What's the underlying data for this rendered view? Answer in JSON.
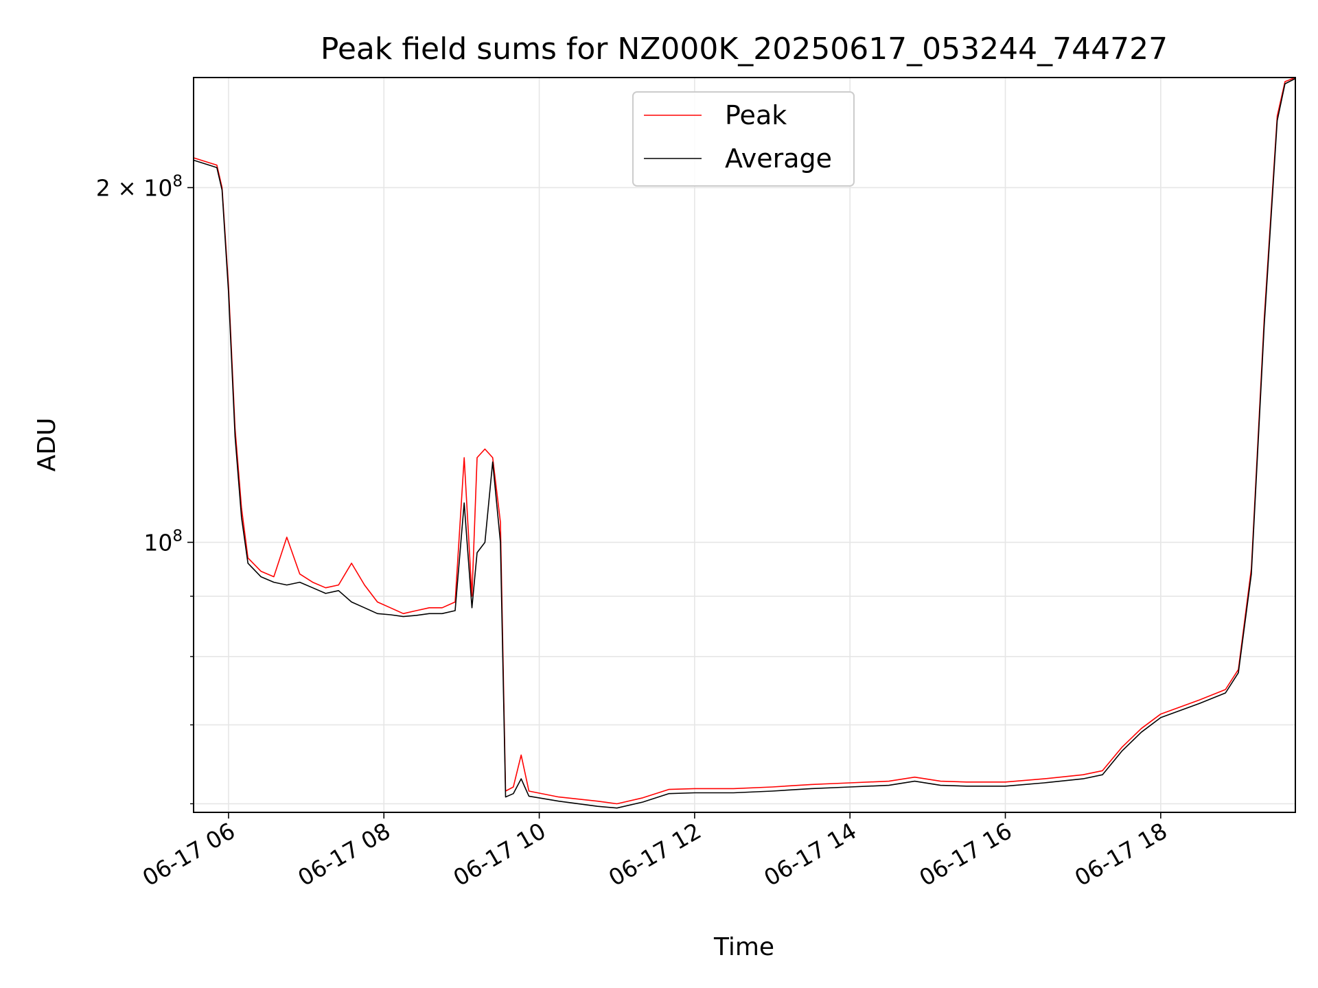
{
  "chart_data": {
    "type": "line",
    "title": "Peak field sums for NZ000K_20250617_053244_744727",
    "xlabel": "Time",
    "ylabel": "ADU",
    "yscale": "log",
    "x_axis_kind": "datetime",
    "xlim": [
      "2025-06-17 05:33",
      "2025-06-17 19:44"
    ],
    "ylim": [
      59000000,
      248000000
    ],
    "grid": true,
    "legend": "top-center",
    "x_tick_labels": [
      "06-17 06",
      "06-17 08",
      "06-17 10",
      "06-17 12",
      "06-17 14",
      "06-17 16",
      "06-17 18"
    ],
    "x_tick_values": [
      "2025-06-17 06:00",
      "2025-06-17 08:00",
      "2025-06-17 10:00",
      "2025-06-17 12:00",
      "2025-06-17 14:00",
      "2025-06-17 16:00",
      "2025-06-17 18:00"
    ],
    "y_major_ticks": [
      {
        "value": 100000000,
        "base": "10",
        "exp": "8",
        "coef": ""
      },
      {
        "value": 200000000,
        "base": "10",
        "exp": "8",
        "coef": "2 × "
      }
    ],
    "y_minor_ticks": [
      60000000,
      70000000,
      80000000,
      90000000
    ],
    "series": [
      {
        "name": "Peak",
        "color": "#ff0000",
        "points": [
          [
            "2025-06-17 05:33",
            212000000
          ],
          [
            "2025-06-17 05:45",
            210000000
          ],
          [
            "2025-06-17 05:51",
            209000000
          ],
          [
            "2025-06-17 05:55",
            200000000
          ],
          [
            "2025-06-17 06:00",
            165000000
          ],
          [
            "2025-06-17 06:05",
            125000000
          ],
          [
            "2025-06-17 06:10",
            107000000
          ],
          [
            "2025-06-17 06:15",
            97000000
          ],
          [
            "2025-06-17 06:25",
            94500000
          ],
          [
            "2025-06-17 06:35",
            93500000
          ],
          [
            "2025-06-17 06:45",
            101000000
          ],
          [
            "2025-06-17 06:55",
            94000000
          ],
          [
            "2025-06-17 07:05",
            92500000
          ],
          [
            "2025-06-17 07:15",
            91500000
          ],
          [
            "2025-06-17 07:25",
            92000000
          ],
          [
            "2025-06-17 07:35",
            96000000
          ],
          [
            "2025-06-17 07:45",
            92000000
          ],
          [
            "2025-06-17 07:55",
            89000000
          ],
          [
            "2025-06-17 08:05",
            88000000
          ],
          [
            "2025-06-17 08:15",
            87000000
          ],
          [
            "2025-06-17 08:25",
            87500000
          ],
          [
            "2025-06-17 08:35",
            88000000
          ],
          [
            "2025-06-17 08:45",
            88000000
          ],
          [
            "2025-06-17 08:55",
            89000000
          ],
          [
            "2025-06-17 09:02",
            118000000
          ],
          [
            "2025-06-17 09:08",
            90000000
          ],
          [
            "2025-06-17 09:12",
            118000000
          ],
          [
            "2025-06-17 09:18",
            120000000
          ],
          [
            "2025-06-17 09:24",
            118000000
          ],
          [
            "2025-06-17 09:30",
            104000000
          ],
          [
            "2025-06-17 09:34",
            61500000
          ],
          [
            "2025-06-17 09:40",
            62000000
          ],
          [
            "2025-06-17 09:46",
            66000000
          ],
          [
            "2025-06-17 09:52",
            61500000
          ],
          [
            "2025-06-17 10:15",
            60800000
          ],
          [
            "2025-06-17 10:45",
            60300000
          ],
          [
            "2025-06-17 11:00",
            60000000
          ],
          [
            "2025-06-17 11:20",
            60700000
          ],
          [
            "2025-06-17 11:40",
            61700000
          ],
          [
            "2025-06-17 12:00",
            61800000
          ],
          [
            "2025-06-17 12:30",
            61800000
          ],
          [
            "2025-06-17 13:00",
            62000000
          ],
          [
            "2025-06-17 13:30",
            62300000
          ],
          [
            "2025-06-17 14:00",
            62500000
          ],
          [
            "2025-06-17 14:30",
            62700000
          ],
          [
            "2025-06-17 14:50",
            63200000
          ],
          [
            "2025-06-17 15:10",
            62700000
          ],
          [
            "2025-06-17 15:30",
            62600000
          ],
          [
            "2025-06-17 16:00",
            62600000
          ],
          [
            "2025-06-17 16:30",
            63000000
          ],
          [
            "2025-06-17 17:00",
            63500000
          ],
          [
            "2025-06-17 17:15",
            64000000
          ],
          [
            "2025-06-17 17:30",
            67000000
          ],
          [
            "2025-06-17 17:45",
            69500000
          ],
          [
            "2025-06-17 18:00",
            71500000
          ],
          [
            "2025-06-17 18:30",
            73500000
          ],
          [
            "2025-06-17 18:50",
            75000000
          ],
          [
            "2025-06-17 19:00",
            78000000
          ],
          [
            "2025-06-17 19:10",
            95000000
          ],
          [
            "2025-06-17 19:20",
            155000000
          ],
          [
            "2025-06-17 19:30",
            230000000
          ],
          [
            "2025-06-17 19:36",
            246000000
          ],
          [
            "2025-06-17 19:44",
            248000000
          ]
        ]
      },
      {
        "name": "Average",
        "color": "#000000",
        "points": [
          [
            "2025-06-17 05:33",
            211000000
          ],
          [
            "2025-06-17 05:45",
            209000000
          ],
          [
            "2025-06-17 05:51",
            208000000
          ],
          [
            "2025-06-17 05:55",
            199000000
          ],
          [
            "2025-06-17 06:00",
            163000000
          ],
          [
            "2025-06-17 06:05",
            123000000
          ],
          [
            "2025-06-17 06:10",
            105000000
          ],
          [
            "2025-06-17 06:15",
            96000000
          ],
          [
            "2025-06-17 06:25",
            93500000
          ],
          [
            "2025-06-17 06:35",
            92500000
          ],
          [
            "2025-06-17 06:45",
            92000000
          ],
          [
            "2025-06-17 06:55",
            92500000
          ],
          [
            "2025-06-17 07:05",
            91500000
          ],
          [
            "2025-06-17 07:15",
            90500000
          ],
          [
            "2025-06-17 07:25",
            91000000
          ],
          [
            "2025-06-17 07:35",
            89000000
          ],
          [
            "2025-06-17 07:45",
            88000000
          ],
          [
            "2025-06-17 07:55",
            87000000
          ],
          [
            "2025-06-17 08:05",
            86800000
          ],
          [
            "2025-06-17 08:15",
            86500000
          ],
          [
            "2025-06-17 08:25",
            86700000
          ],
          [
            "2025-06-17 08:35",
            87000000
          ],
          [
            "2025-06-17 08:45",
            87000000
          ],
          [
            "2025-06-17 08:55",
            87500000
          ],
          [
            "2025-06-17 09:02",
            108000000
          ],
          [
            "2025-06-17 09:08",
            88000000
          ],
          [
            "2025-06-17 09:12",
            98000000
          ],
          [
            "2025-06-17 09:18",
            100000000
          ],
          [
            "2025-06-17 09:24",
            117000000
          ],
          [
            "2025-06-17 09:30",
            100000000
          ],
          [
            "2025-06-17 09:34",
            60800000
          ],
          [
            "2025-06-17 09:40",
            61200000
          ],
          [
            "2025-06-17 09:46",
            63000000
          ],
          [
            "2025-06-17 09:52",
            60900000
          ],
          [
            "2025-06-17 10:15",
            60300000
          ],
          [
            "2025-06-17 10:45",
            59700000
          ],
          [
            "2025-06-17 11:00",
            59500000
          ],
          [
            "2025-06-17 11:20",
            60200000
          ],
          [
            "2025-06-17 11:40",
            61200000
          ],
          [
            "2025-06-17 12:00",
            61300000
          ],
          [
            "2025-06-17 12:30",
            61300000
          ],
          [
            "2025-06-17 13:00",
            61500000
          ],
          [
            "2025-06-17 13:30",
            61800000
          ],
          [
            "2025-06-17 14:00",
            62000000
          ],
          [
            "2025-06-17 14:30",
            62200000
          ],
          [
            "2025-06-17 14:50",
            62700000
          ],
          [
            "2025-06-17 15:10",
            62200000
          ],
          [
            "2025-06-17 15:30",
            62100000
          ],
          [
            "2025-06-17 16:00",
            62100000
          ],
          [
            "2025-06-17 16:30",
            62500000
          ],
          [
            "2025-06-17 17:00",
            63000000
          ],
          [
            "2025-06-17 17:15",
            63500000
          ],
          [
            "2025-06-17 17:30",
            66500000
          ],
          [
            "2025-06-17 17:45",
            69000000
          ],
          [
            "2025-06-17 18:00",
            71000000
          ],
          [
            "2025-06-17 18:30",
            73000000
          ],
          [
            "2025-06-17 18:50",
            74500000
          ],
          [
            "2025-06-17 19:00",
            77500000
          ],
          [
            "2025-06-17 19:10",
            94000000
          ],
          [
            "2025-06-17 19:20",
            153000000
          ],
          [
            "2025-06-17 19:30",
            228000000
          ],
          [
            "2025-06-17 19:36",
            245000000
          ],
          [
            "2025-06-17 19:44",
            247500000
          ]
        ]
      }
    ]
  }
}
